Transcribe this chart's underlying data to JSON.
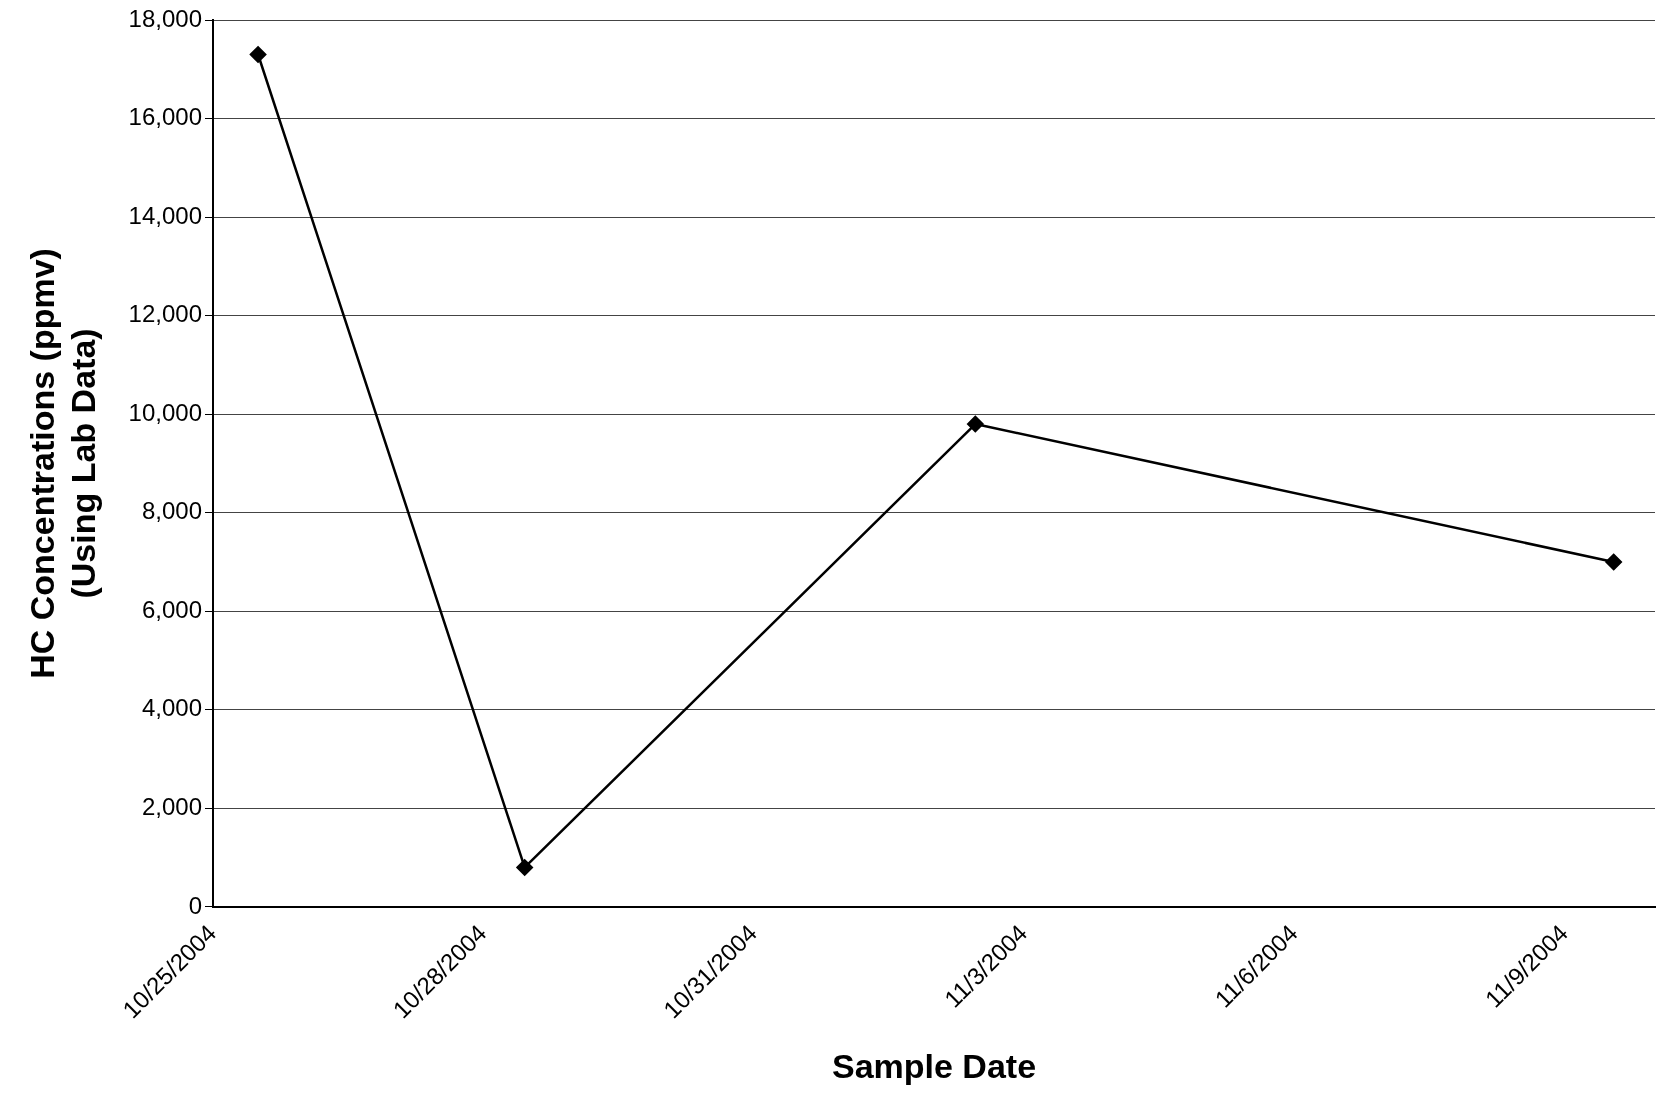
{
  "chart_data": {
    "type": "line",
    "xlabel": "Sample Date",
    "ylabel": "HC Concentrations (ppmv)\n(Using Lab Data)",
    "x": [
      "2004-10-25T12:00",
      "2004-10-28T11:00",
      "2004-11-02T11:00",
      "2004-11-09T13:00"
    ],
    "series": [
      {
        "color": "#000000",
        "values": [
          17300,
          800,
          9800,
          7000
        ]
      }
    ],
    "xlim": [
      "2004-10-25",
      "2004-11-10"
    ],
    "xticks": [
      {
        "value": "2004-10-25",
        "label": "10/25/2004"
      },
      {
        "value": "2004-10-28",
        "label": "10/28/2004"
      },
      {
        "value": "2004-10-31",
        "label": "10/31/2004"
      },
      {
        "value": "2004-11-03",
        "label": "11/3/2004"
      },
      {
        "value": "2004-11-06",
        "label": "11/6/2004"
      },
      {
        "value": "2004-11-09",
        "label": "11/9/2004"
      }
    ],
    "ylim": [
      0,
      18000
    ],
    "yticks": [
      {
        "value": 0,
        "label": "0"
      },
      {
        "value": 2000,
        "label": "2,000"
      },
      {
        "value": 4000,
        "label": "4,000"
      },
      {
        "value": 6000,
        "label": "6,000"
      },
      {
        "value": 8000,
        "label": "8,000"
      },
      {
        "value": 10000,
        "label": "10,000"
      },
      {
        "value": 12000,
        "label": "12,000"
      },
      {
        "value": 14000,
        "label": "14,000"
      },
      {
        "value": 16000,
        "label": "16,000"
      },
      {
        "value": 18000,
        "label": "18,000"
      }
    ],
    "grid": "y",
    "marker": "diamond",
    "line_style": "solid",
    "legend": false
  }
}
